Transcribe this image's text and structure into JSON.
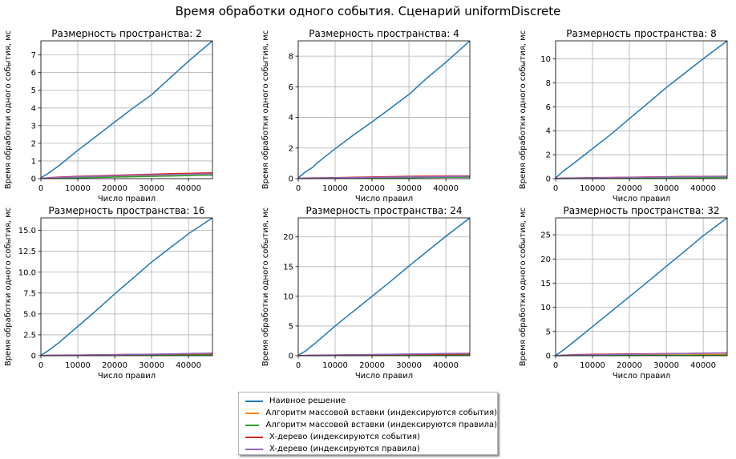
{
  "figure": {
    "title": "Время обработки одного события. Сценарий uniformDiscrete"
  },
  "colors": {
    "naive": "#1f77b4",
    "bulk_events": "#ff7f0e",
    "bulk_rules": "#2ca02c",
    "xtree_events": "#d62728",
    "xtree_rules": "#9467bd"
  },
  "legend": [
    {
      "label": "Наивное решение",
      "color": "#1f77b4"
    },
    {
      "label": "Алгоритм массовой вставки (индексируются события)",
      "color": "#ff7f0e"
    },
    {
      "label": "Алгоритм массовой вставки (индексируются правила)",
      "color": "#2ca02c"
    },
    {
      "label": "X-дерево (индексируются события)",
      "color": "#d62728"
    },
    {
      "label": "X-дерево (индексируются правила)",
      "color": "#9467bd"
    }
  ],
  "chart_data": [
    {
      "type": "line",
      "title": "Размерность пространства: 2",
      "xlabel": "Число правил",
      "ylabel": "Время обработки одного события, мс",
      "xlim": [
        0,
        46500
      ],
      "ylim": [
        0,
        7.8
      ],
      "xticks": [
        "0",
        "10000",
        "20000",
        "30000",
        "40000"
      ],
      "yticks": [
        "0",
        "1",
        "2",
        "3",
        "4",
        "5",
        "6",
        "7"
      ],
      "grid": true,
      "x": [
        0,
        2000,
        5000,
        10000,
        15000,
        20000,
        25000,
        30000,
        35000,
        40000,
        46500
      ],
      "series": [
        {
          "name": "Наивное решение",
          "values": [
            0.05,
            0.3,
            0.75,
            1.6,
            2.4,
            3.2,
            4.0,
            4.75,
            5.7,
            6.65,
            7.8
          ]
        },
        {
          "name": "Алгоритм массовой вставки (индексируются события)",
          "values": [
            0.01,
            0.02,
            0.04,
            0.07,
            0.1,
            0.13,
            0.16,
            0.19,
            0.22,
            0.25,
            0.28
          ]
        },
        {
          "name": "Алгоритм массовой вставки (индексируются правила)",
          "values": [
            0.01,
            0.02,
            0.03,
            0.05,
            0.07,
            0.09,
            0.11,
            0.13,
            0.15,
            0.17,
            0.2
          ]
        },
        {
          "name": "X-дерево (индексируются события)",
          "values": [
            0.02,
            0.05,
            0.09,
            0.13,
            0.16,
            0.19,
            0.22,
            0.25,
            0.28,
            0.3,
            0.33
          ]
        },
        {
          "name": "X-дерево (индексируются правила)",
          "values": [
            0.01,
            0.04,
            0.07,
            0.1,
            0.13,
            0.16,
            0.19,
            0.21,
            0.23,
            0.25,
            0.27
          ]
        }
      ]
    },
    {
      "type": "line",
      "title": "Размерность пространства: 4",
      "xlabel": "Число правил",
      "ylabel": "Время обработки одного события, мс",
      "xlim": [
        0,
        46500
      ],
      "ylim": [
        0,
        9
      ],
      "xticks": [
        "0",
        "10000",
        "20000",
        "30000",
        "40000"
      ],
      "yticks": [
        "0",
        "2",
        "4",
        "6",
        "8"
      ],
      "grid": true,
      "x": [
        0,
        2000,
        4000,
        5000,
        10000,
        15000,
        20000,
        25000,
        30000,
        35000,
        40000,
        46500
      ],
      "series": [
        {
          "name": "Наивное решение",
          "values": [
            0.05,
            0.45,
            0.75,
            1.0,
            1.95,
            2.85,
            3.7,
            4.6,
            5.5,
            6.6,
            7.6,
            9.0
          ]
        },
        {
          "name": "Алгоритм массовой вставки (индексируются события)",
          "values": [
            0.01,
            0.02,
            0.03,
            0.03,
            0.05,
            0.06,
            0.08,
            0.09,
            0.1,
            0.11,
            0.12,
            0.14
          ]
        },
        {
          "name": "Алгоритм массовой вставки (индексируются правила)",
          "values": [
            0.01,
            0.01,
            0.02,
            0.02,
            0.03,
            0.04,
            0.05,
            0.06,
            0.07,
            0.08,
            0.09,
            0.1
          ]
        },
        {
          "name": "X-дерево (индексируются события)",
          "values": [
            0.02,
            0.04,
            0.05,
            0.05,
            0.07,
            0.09,
            0.11,
            0.13,
            0.15,
            0.16,
            0.17,
            0.18
          ]
        },
        {
          "name": "X-дерево (индексируются правила)",
          "values": [
            0.01,
            0.03,
            0.04,
            0.04,
            0.06,
            0.07,
            0.08,
            0.1,
            0.11,
            0.12,
            0.13,
            0.15
          ]
        }
      ]
    },
    {
      "type": "line",
      "title": "Размерность пространства: 8",
      "xlabel": "Число правил",
      "ylabel": "Время обработки одного события, мс",
      "xlim": [
        0,
        46500
      ],
      "ylim": [
        0,
        11.5
      ],
      "xticks": [
        "0",
        "10000",
        "20000",
        "30000",
        "40000"
      ],
      "yticks": [
        "0",
        "2",
        "4",
        "6",
        "8",
        "10"
      ],
      "grid": true,
      "x": [
        0,
        2000,
        5000,
        10000,
        15000,
        20000,
        25000,
        30000,
        35000,
        40000,
        46500
      ],
      "series": [
        {
          "name": "Наивное решение",
          "values": [
            0.05,
            0.6,
            1.3,
            2.5,
            3.7,
            5.0,
            6.3,
            7.6,
            8.8,
            10.0,
            11.5
          ]
        },
        {
          "name": "Алгоритм массовой вставки (индексируются события)",
          "values": [
            0.01,
            0.02,
            0.03,
            0.05,
            0.07,
            0.09,
            0.1,
            0.12,
            0.13,
            0.15,
            0.17
          ]
        },
        {
          "name": "Алгоритм массовой вставки (индексируются правила)",
          "values": [
            0.01,
            0.01,
            0.02,
            0.03,
            0.04,
            0.05,
            0.06,
            0.07,
            0.08,
            0.09,
            0.1
          ]
        },
        {
          "name": "X-дерево (индексируются события)",
          "values": [
            0.02,
            0.04,
            0.06,
            0.08,
            0.1,
            0.12,
            0.14,
            0.16,
            0.18,
            0.19,
            0.2
          ]
        },
        {
          "name": "X-дерево (индексируются правила)",
          "values": [
            0.01,
            0.03,
            0.05,
            0.07,
            0.09,
            0.11,
            0.12,
            0.14,
            0.15,
            0.17,
            0.18
          ]
        }
      ]
    },
    {
      "type": "line",
      "title": "Размерность пространства: 16",
      "xlabel": "Число правил",
      "ylabel": "Время обработки одного события, мс",
      "xlim": [
        0,
        46500
      ],
      "ylim": [
        0,
        16.5
      ],
      "xticks": [
        "0",
        "10000",
        "20000",
        "30000",
        "40000"
      ],
      "yticks": [
        "0",
        "2.5",
        "5.0",
        "7.5",
        "10.0",
        "12.5",
        "15.0"
      ],
      "grid": true,
      "x": [
        0,
        2000,
        5000,
        10000,
        15000,
        20000,
        25000,
        30000,
        35000,
        40000,
        46500
      ],
      "series": [
        {
          "name": "Наивное решение",
          "values": [
            0.05,
            0.6,
            1.6,
            3.5,
            5.4,
            7.4,
            9.3,
            11.2,
            12.9,
            14.6,
            16.5
          ]
        },
        {
          "name": "Алгоритм массовой вставки (индексируются события)",
          "values": [
            0.01,
            0.02,
            0.03,
            0.05,
            0.07,
            0.09,
            0.11,
            0.13,
            0.15,
            0.17,
            0.19
          ]
        },
        {
          "name": "Алгоритм массовой вставки (индексируются правила)",
          "values": [
            0.01,
            0.01,
            0.02,
            0.03,
            0.04,
            0.05,
            0.06,
            0.07,
            0.08,
            0.09,
            0.1
          ]
        },
        {
          "name": "X-дерево (индексируются события)",
          "values": [
            0.02,
            0.05,
            0.07,
            0.09,
            0.11,
            0.13,
            0.15,
            0.17,
            0.19,
            0.21,
            0.23
          ]
        },
        {
          "name": "X-дерево (индексируются правила)",
          "values": [
            0.01,
            0.04,
            0.06,
            0.08,
            0.1,
            0.12,
            0.15,
            0.18,
            0.22,
            0.26,
            0.3
          ]
        }
      ]
    },
    {
      "type": "line",
      "title": "Размерность пространства: 24",
      "xlabel": "Число правил",
      "ylabel": "Время обработки одного события, мс",
      "xlim": [
        0,
        46500
      ],
      "ylim": [
        0,
        23.2
      ],
      "xticks": [
        "0",
        "10000",
        "20000",
        "30000",
        "40000"
      ],
      "yticks": [
        "0",
        "5",
        "10",
        "15",
        "20"
      ],
      "grid": true,
      "x": [
        0,
        2000,
        5000,
        10000,
        15000,
        20000,
        25000,
        30000,
        35000,
        40000,
        46500
      ],
      "series": [
        {
          "name": "Наивное решение",
          "values": [
            0.05,
            0.8,
            2.3,
            5.0,
            7.5,
            10.0,
            12.5,
            15.1,
            17.6,
            20.1,
            23.2
          ]
        },
        {
          "name": "Алгоритм массовой вставки (индексируются события)",
          "values": [
            0.01,
            0.02,
            0.04,
            0.06,
            0.08,
            0.1,
            0.12,
            0.14,
            0.16,
            0.18,
            0.2
          ]
        },
        {
          "name": "Алгоритм массовой вставки (индексируются правила)",
          "values": [
            0.01,
            0.01,
            0.02,
            0.03,
            0.04,
            0.05,
            0.06,
            0.07,
            0.08,
            0.09,
            0.1
          ]
        },
        {
          "name": "X-дерево (индексируются события)",
          "values": [
            0.02,
            0.06,
            0.09,
            0.12,
            0.15,
            0.18,
            0.2,
            0.22,
            0.24,
            0.26,
            0.28
          ]
        },
        {
          "name": "X-дерево (индексируются правила)",
          "values": [
            0.01,
            0.05,
            0.08,
            0.12,
            0.16,
            0.2,
            0.24,
            0.28,
            0.32,
            0.36,
            0.4
          ]
        }
      ]
    },
    {
      "type": "line",
      "title": "Размерность пространства: 32",
      "xlabel": "Число правил",
      "ylabel": "Время обработки одного события, мс",
      "xlim": [
        0,
        46500
      ],
      "ylim": [
        0,
        28.5
      ],
      "xticks": [
        "0",
        "10000",
        "20000",
        "30000",
        "40000"
      ],
      "yticks": [
        "0",
        "5",
        "10",
        "15",
        "20",
        "25"
      ],
      "grid": true,
      "x": [
        0,
        2000,
        5000,
        10000,
        15000,
        20000,
        25000,
        30000,
        35000,
        40000,
        46500
      ],
      "series": [
        {
          "name": "Наивное решение",
          "values": [
            0.05,
            1.1,
            2.9,
            6.0,
            9.1,
            12.2,
            15.3,
            18.5,
            21.6,
            24.8,
            28.5
          ]
        },
        {
          "name": "Алгоритм массовой вставки (индексируются события)",
          "values": [
            0.01,
            0.02,
            0.04,
            0.06,
            0.08,
            0.1,
            0.12,
            0.14,
            0.16,
            0.2,
            0.25
          ]
        },
        {
          "name": "Алгоритм массовой вставки (индексируются правила)",
          "values": [
            0.01,
            0.01,
            0.02,
            0.03,
            0.04,
            0.05,
            0.06,
            0.07,
            0.08,
            0.09,
            0.1
          ]
        },
        {
          "name": "X-дерево (индексируются события)",
          "values": [
            0.02,
            0.1,
            0.2,
            0.28,
            0.33,
            0.37,
            0.4,
            0.43,
            0.46,
            0.5,
            0.55
          ]
        },
        {
          "name": "X-дерево (индексируются правила)",
          "values": [
            0.01,
            0.08,
            0.15,
            0.22,
            0.26,
            0.3,
            0.35,
            0.4,
            0.45,
            0.52,
            0.6
          ]
        }
      ]
    }
  ]
}
